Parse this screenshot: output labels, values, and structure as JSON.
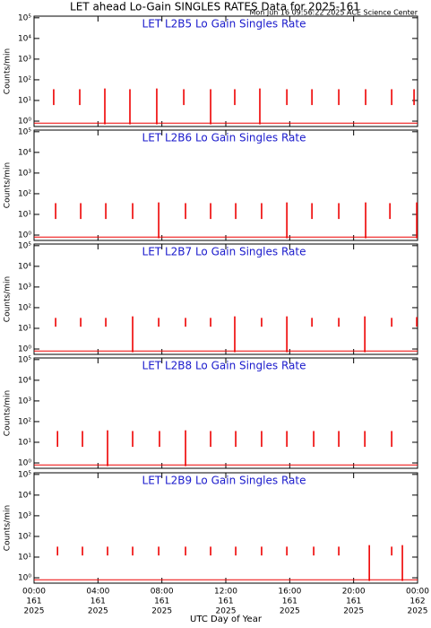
{
  "title": "LET ahead Lo-Gain SINGLES RATES Data for 2025-161",
  "subtitle": "Mon Jun 16 09:56:22 2025 ACE Science Center",
  "xlabel": "UTC Day of Year",
  "xtick_labels": {
    "hours": [
      "00:00",
      "04:00",
      "08:00",
      "12:00",
      "16:00",
      "20:00",
      "00:00"
    ],
    "days": [
      "161",
      "161",
      "161",
      "161",
      "161",
      "161",
      "162"
    ],
    "years": [
      "2025",
      "2025",
      "2025",
      "2025",
      "2025",
      "2025",
      "2025"
    ]
  },
  "chart_data": [
    {
      "type": "spike",
      "panel_title": "LET L2B5 Lo Gain Singles Rate",
      "ylabel": "Counts/min",
      "color": "#ee0000",
      "log_scale": true,
      "xlim": [
        0,
        24
      ],
      "xticks": [
        0,
        4,
        8,
        12,
        16,
        20,
        24
      ],
      "ylim": [
        0.55,
        120000
      ],
      "yticks": [
        {
          "value": 1,
          "label": "10⁰"
        },
        {
          "value": 10,
          "label": "10¹"
        },
        {
          "value": 100,
          "label": "10²"
        },
        {
          "value": 1000,
          "label": "10³"
        },
        {
          "value": 10000,
          "label": "10⁴"
        },
        {
          "value": 100000,
          "label": "10⁵"
        }
      ],
      "baseline": 0.8,
      "x": [
        1.23,
        2.86,
        4.43,
        6.0,
        7.68,
        9.37,
        11.05,
        12.56,
        14.13,
        15.82,
        17.39,
        19.07,
        20.75,
        22.38,
        23.78
      ],
      "values": [
        35,
        35,
        38,
        35,
        38,
        35,
        35,
        35,
        38,
        35,
        35,
        35,
        35,
        35,
        35
      ],
      "lows": [
        6,
        6,
        0.7,
        0.7,
        0.7,
        6,
        0.7,
        6,
        0.7,
        6,
        6,
        6,
        6,
        6,
        6
      ]
    },
    {
      "type": "spike",
      "panel_title": "LET L2B6 Lo Gain Singles Rate",
      "ylabel": "Counts/min",
      "color": "#ee0000",
      "log_scale": true,
      "xlim": [
        0,
        24
      ],
      "xticks": [
        0,
        4,
        8,
        12,
        16,
        20,
        24
      ],
      "ylim": [
        0.55,
        120000
      ],
      "yticks": [
        {
          "value": 1,
          "label": "10⁰"
        },
        {
          "value": 10,
          "label": "10¹"
        },
        {
          "value": 100,
          "label": "10²"
        },
        {
          "value": 1000,
          "label": "10³"
        },
        {
          "value": 10000,
          "label": "10⁴"
        },
        {
          "value": 100000,
          "label": "10⁵"
        }
      ],
      "baseline": 0.8,
      "x": [
        1.35,
        2.92,
        4.49,
        6.17,
        7.8,
        9.48,
        11.05,
        12.62,
        14.24,
        15.82,
        17.39,
        19.07,
        20.75,
        22.27,
        23.95
      ],
      "values": [
        35,
        35,
        35,
        35,
        38,
        35,
        35,
        35,
        35,
        38,
        35,
        35,
        38,
        35,
        38
      ],
      "lows": [
        6,
        6,
        6,
        6,
        0.7,
        6,
        6,
        6,
        6,
        0.7,
        6,
        6,
        0.7,
        6,
        0.7
      ]
    },
    {
      "type": "spike",
      "panel_title": "LET L2B7 Lo Gain Singles Rate",
      "ylabel": "Counts/min",
      "color": "#ee0000",
      "log_scale": true,
      "xlim": [
        0,
        24
      ],
      "xticks": [
        0,
        4,
        8,
        12,
        16,
        20,
        24
      ],
      "ylim": [
        0.55,
        120000
      ],
      "yticks": [
        {
          "value": 1,
          "label": "10⁰"
        },
        {
          "value": 10,
          "label": "10¹"
        },
        {
          "value": 100,
          "label": "10²"
        },
        {
          "value": 1000,
          "label": "10³"
        },
        {
          "value": 10000,
          "label": "10⁴"
        },
        {
          "value": 100000,
          "label": "10⁵"
        }
      ],
      "baseline": 0.8,
      "x": [
        1.35,
        2.92,
        4.49,
        6.17,
        7.8,
        9.48,
        11.05,
        12.56,
        14.24,
        15.82,
        17.39,
        19.07,
        20.7,
        22.38,
        23.95
      ],
      "values": [
        32,
        32,
        32,
        38,
        32,
        32,
        32,
        38,
        32,
        38,
        32,
        32,
        38,
        32,
        35
      ],
      "lows": [
        12,
        12,
        12,
        0.7,
        12,
        12,
        12,
        0.7,
        12,
        0.7,
        12,
        12,
        0.7,
        12,
        12
      ]
    },
    {
      "type": "spike",
      "panel_title": "LET L2B8 Lo Gain Singles Rate",
      "ylabel": "Counts/min",
      "color": "#ee0000",
      "log_scale": true,
      "xlim": [
        0,
        24
      ],
      "xticks": [
        0,
        4,
        8,
        12,
        16,
        20,
        24
      ],
      "ylim": [
        0.55,
        120000
      ],
      "yticks": [
        {
          "value": 1,
          "label": "10⁰"
        },
        {
          "value": 10,
          "label": "10¹"
        },
        {
          "value": 100,
          "label": "10²"
        },
        {
          "value": 1000,
          "label": "10³"
        },
        {
          "value": 10000,
          "label": "10⁴"
        },
        {
          "value": 100000,
          "label": "10⁵"
        }
      ],
      "baseline": 0.8,
      "x": [
        1.47,
        3.03,
        4.6,
        6.17,
        7.85,
        9.48,
        11.05,
        12.62,
        14.24,
        15.82,
        17.5,
        19.07,
        20.7,
        22.38
      ],
      "values": [
        35,
        35,
        38,
        35,
        35,
        38,
        35,
        35,
        35,
        35,
        35,
        35,
        35,
        35
      ],
      "lows": [
        6,
        6,
        0.7,
        6,
        6,
        0.7,
        6,
        6,
        6,
        6,
        6,
        6,
        6,
        6
      ]
    },
    {
      "type": "spike",
      "panel_title": "LET L2B9 Lo Gain Singles Rate",
      "ylabel": "Counts/min",
      "color": "#ee0000",
      "log_scale": true,
      "xlim": [
        0,
        24
      ],
      "xticks": [
        0,
        4,
        8,
        12,
        16,
        20,
        24
      ],
      "ylim": [
        0.55,
        120000
      ],
      "yticks": [
        {
          "value": 1,
          "label": "10⁰"
        },
        {
          "value": 10,
          "label": "10¹"
        },
        {
          "value": 100,
          "label": "10²"
        },
        {
          "value": 1000,
          "label": "10³"
        },
        {
          "value": 10000,
          "label": "10⁴"
        },
        {
          "value": 100000,
          "label": "10⁵"
        }
      ],
      "baseline": 0.8,
      "x": [
        1.47,
        3.03,
        4.6,
        6.17,
        7.8,
        9.48,
        11.05,
        12.62,
        14.24,
        15.82,
        17.5,
        19.07,
        20.98,
        22.38,
        23.05
      ],
      "values": [
        32,
        32,
        32,
        32,
        32,
        32,
        32,
        32,
        32,
        32,
        32,
        32,
        38,
        32,
        38
      ],
      "lows": [
        12,
        12,
        12,
        12,
        12,
        12,
        12,
        12,
        12,
        12,
        12,
        12,
        0.7,
        12,
        0.7
      ]
    }
  ]
}
